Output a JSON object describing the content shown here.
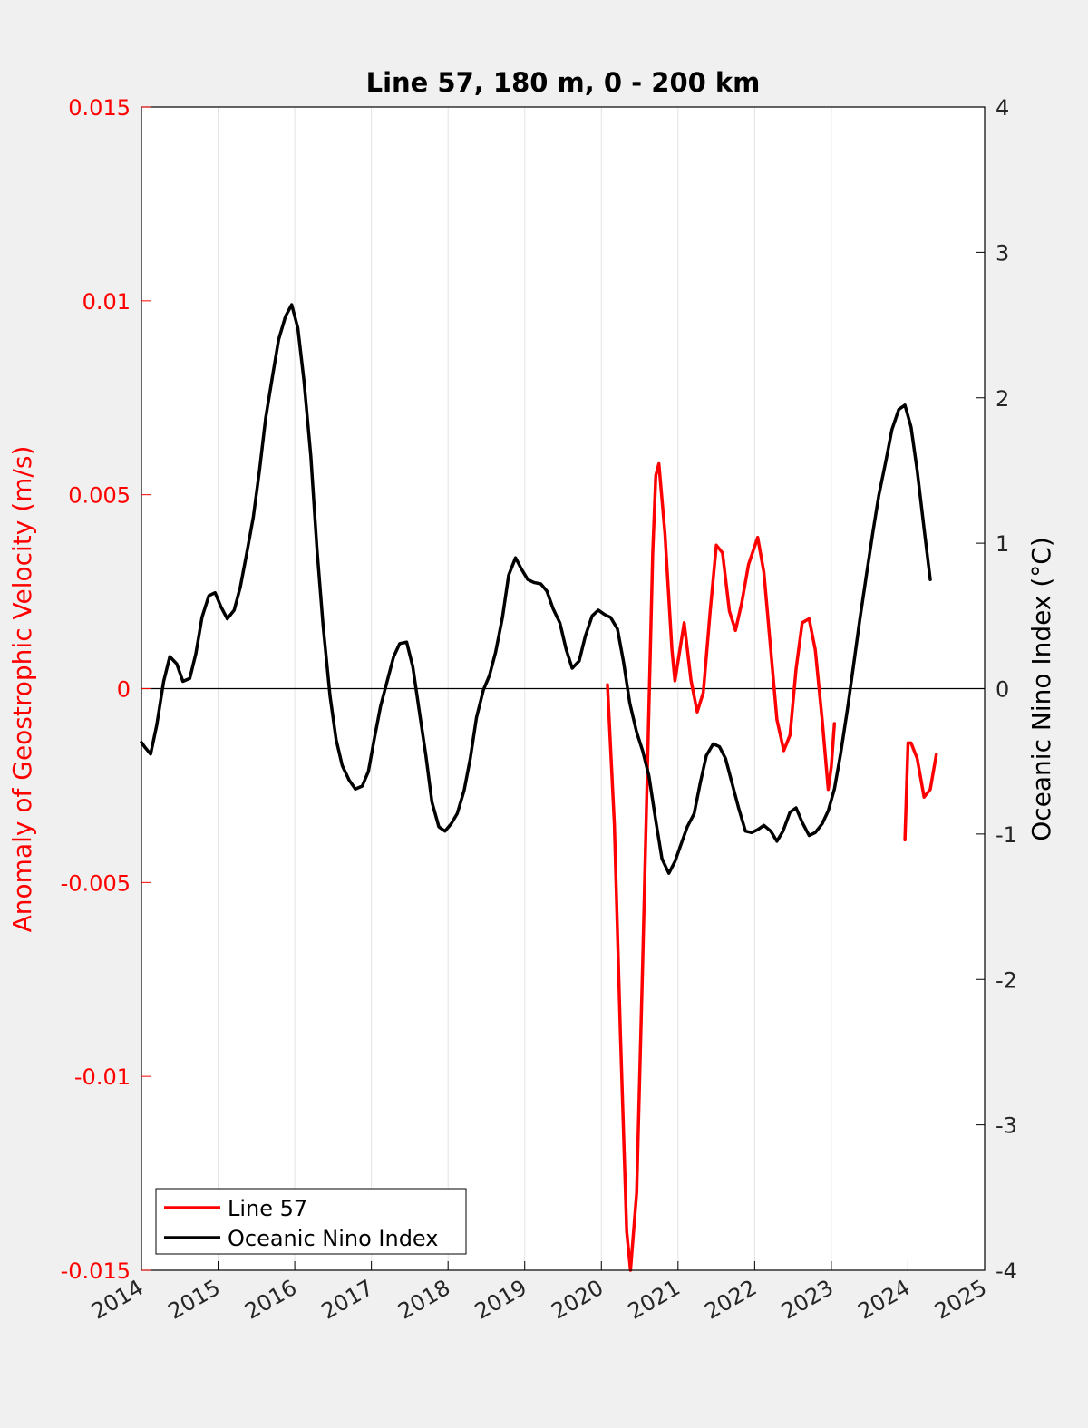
{
  "chart_data": {
    "type": "line",
    "title": "Line 57, 180 m, 0 - 200 km",
    "xlabel": "",
    "ylabel_left": "Anomaly of Geostrophic Velocity (m/s)",
    "ylabel_right": "Oceanic Nino Index (°C)",
    "xlim": [
      2014,
      2025
    ],
    "ylim_left": [
      -0.015,
      0.015
    ],
    "ylim_right": [
      -4,
      4
    ],
    "x_ticks": [
      "2014",
      "2015",
      "2016",
      "2017",
      "2018",
      "2019",
      "2020",
      "2021",
      "2022",
      "2023",
      "2024",
      "2025"
    ],
    "y_left_ticks": [
      "-0.015",
      "-0.01",
      "-0.005",
      "0",
      "0.005",
      "0.01",
      "0.015"
    ],
    "y_right_ticks": [
      "-4",
      "-3",
      "-2",
      "-1",
      "0",
      "1",
      "2",
      "3",
      "4"
    ],
    "grid": "vertical",
    "zero_line": true,
    "legend_position": "bottom-left",
    "colors": {
      "left_axis": "#ff0000",
      "line57": "#ff0000",
      "oni": "#000000",
      "background": "#f0f0f0",
      "plot_bg": "#ffffff"
    },
    "series": [
      {
        "name": "Line 57",
        "axis": "left",
        "color": "#ff0000",
        "segments": [
          [
            [
              2020.08,
              0.0001
            ],
            [
              2020.17,
              -0.0035
            ],
            [
              2020.25,
              -0.009
            ],
            [
              2020.33,
              -0.014
            ],
            [
              2020.38,
              -0.015
            ],
            [
              2020.46,
              -0.013
            ],
            [
              2020.54,
              -0.007
            ],
            [
              2020.62,
              -0.0005
            ],
            [
              2020.67,
              0.0035
            ],
            [
              2020.71,
              0.0055
            ],
            [
              2020.75,
              0.0058
            ],
            [
              2020.83,
              0.004
            ],
            [
              2020.92,
              0.001
            ],
            [
              2020.96,
              0.0002
            ],
            [
              2021.04,
              0.0012
            ],
            [
              2021.08,
              0.0017
            ],
            [
              2021.17,
              0.0002
            ],
            [
              2021.25,
              -0.0006
            ],
            [
              2021.33,
              -0.0001
            ],
            [
              2021.42,
              0.002
            ],
            [
              2021.5,
              0.0037
            ],
            [
              2021.58,
              0.0035
            ],
            [
              2021.67,
              0.002
            ],
            [
              2021.75,
              0.0015
            ],
            [
              2021.83,
              0.0022
            ],
            [
              2021.92,
              0.0032
            ],
            [
              2022.04,
              0.0039
            ],
            [
              2022.12,
              0.003
            ],
            [
              2022.21,
              0.001
            ],
            [
              2022.29,
              -0.0008
            ],
            [
              2022.38,
              -0.0016
            ],
            [
              2022.46,
              -0.0012
            ],
            [
              2022.54,
              0.0005
            ],
            [
              2022.62,
              0.0017
            ],
            [
              2022.71,
              0.0018
            ],
            [
              2022.79,
              0.001
            ],
            [
              2022.88,
              -0.0008
            ],
            [
              2022.96,
              -0.0026
            ],
            [
              2023.0,
              -0.002
            ],
            [
              2023.04,
              -0.0009
            ]
          ],
          [
            [
              2023.96,
              -0.0039
            ],
            [
              2024.0,
              -0.0014
            ],
            [
              2024.04,
              -0.0014
            ],
            [
              2024.12,
              -0.0018
            ],
            [
              2024.21,
              -0.0028
            ],
            [
              2024.29,
              -0.0026
            ],
            [
              2024.37,
              -0.0017
            ]
          ]
        ]
      },
      {
        "name": "Oceanic Nino Index",
        "axis": "right",
        "color": "#000000",
        "segments": [
          [
            [
              2014.0,
              -0.37
            ],
            [
              2014.04,
              -0.4
            ],
            [
              2014.12,
              -0.45
            ],
            [
              2014.2,
              -0.25
            ],
            [
              2014.29,
              0.05
            ],
            [
              2014.37,
              0.22
            ],
            [
              2014.46,
              0.17
            ],
            [
              2014.54,
              0.05
            ],
            [
              2014.63,
              0.07
            ],
            [
              2014.71,
              0.24
            ],
            [
              2014.79,
              0.49
            ],
            [
              2014.88,
              0.64
            ],
            [
              2014.96,
              0.66
            ],
            [
              2015.04,
              0.56
            ],
            [
              2015.12,
              0.48
            ],
            [
              2015.21,
              0.54
            ],
            [
              2015.29,
              0.7
            ],
            [
              2015.37,
              0.92
            ],
            [
              2015.46,
              1.18
            ],
            [
              2015.54,
              1.5
            ],
            [
              2015.62,
              1.86
            ],
            [
              2015.71,
              2.15
            ],
            [
              2015.79,
              2.4
            ],
            [
              2015.88,
              2.56
            ],
            [
              2015.96,
              2.64
            ],
            [
              2016.04,
              2.48
            ],
            [
              2016.12,
              2.12
            ],
            [
              2016.21,
              1.6
            ],
            [
              2016.29,
              0.96
            ],
            [
              2016.37,
              0.43
            ],
            [
              2016.46,
              -0.05
            ],
            [
              2016.54,
              -0.35
            ],
            [
              2016.62,
              -0.53
            ],
            [
              2016.71,
              -0.63
            ],
            [
              2016.79,
              -0.69
            ],
            [
              2016.88,
              -0.67
            ],
            [
              2016.96,
              -0.57
            ],
            [
              2017.04,
              -0.34
            ],
            [
              2017.12,
              -0.12
            ],
            [
              2017.21,
              0.06
            ],
            [
              2017.29,
              0.22
            ],
            [
              2017.37,
              0.31
            ],
            [
              2017.46,
              0.32
            ],
            [
              2017.54,
              0.15
            ],
            [
              2017.62,
              -0.14
            ],
            [
              2017.71,
              -0.46
            ],
            [
              2017.79,
              -0.78
            ],
            [
              2017.88,
              -0.95
            ],
            [
              2017.96,
              -0.98
            ],
            [
              2018.04,
              -0.93
            ],
            [
              2018.12,
              -0.86
            ],
            [
              2018.21,
              -0.7
            ],
            [
              2018.29,
              -0.48
            ],
            [
              2018.37,
              -0.2
            ],
            [
              2018.46,
              -0.01
            ],
            [
              2018.54,
              0.09
            ],
            [
              2018.62,
              0.25
            ],
            [
              2018.71,
              0.49
            ],
            [
              2018.79,
              0.78
            ],
            [
              2018.88,
              0.9
            ],
            [
              2018.96,
              0.82
            ],
            [
              2019.04,
              0.75
            ],
            [
              2019.12,
              0.73
            ],
            [
              2019.21,
              0.72
            ],
            [
              2019.29,
              0.67
            ],
            [
              2019.37,
              0.55
            ],
            [
              2019.46,
              0.45
            ],
            [
              2019.54,
              0.27
            ],
            [
              2019.62,
              0.14
            ],
            [
              2019.71,
              0.19
            ],
            [
              2019.79,
              0.36
            ],
            [
              2019.88,
              0.5
            ],
            [
              2019.96,
              0.54
            ],
            [
              2020.04,
              0.51
            ],
            [
              2020.12,
              0.49
            ],
            [
              2020.21,
              0.41
            ],
            [
              2020.29,
              0.18
            ],
            [
              2020.37,
              -0.1
            ],
            [
              2020.46,
              -0.3
            ],
            [
              2020.54,
              -0.43
            ],
            [
              2020.62,
              -0.6
            ],
            [
              2020.71,
              -0.91
            ],
            [
              2020.79,
              -1.17
            ],
            [
              2020.88,
              -1.27
            ],
            [
              2020.96,
              -1.19
            ],
            [
              2021.04,
              -1.07
            ],
            [
              2021.12,
              -0.95
            ],
            [
              2021.21,
              -0.86
            ],
            [
              2021.29,
              -0.65
            ],
            [
              2021.37,
              -0.46
            ],
            [
              2021.46,
              -0.38
            ],
            [
              2021.54,
              -0.4
            ],
            [
              2021.62,
              -0.48
            ],
            [
              2021.71,
              -0.66
            ],
            [
              2021.79,
              -0.82
            ],
            [
              2021.88,
              -0.98
            ],
            [
              2021.96,
              -0.99
            ],
            [
              2022.04,
              -0.97
            ],
            [
              2022.12,
              -0.94
            ],
            [
              2022.21,
              -0.98
            ],
            [
              2022.29,
              -1.05
            ],
            [
              2022.37,
              -0.98
            ],
            [
              2022.46,
              -0.85
            ],
            [
              2022.54,
              -0.82
            ],
            [
              2022.62,
              -0.92
            ],
            [
              2022.71,
              -1.01
            ],
            [
              2022.79,
              -0.99
            ],
            [
              2022.88,
              -0.93
            ],
            [
              2022.96,
              -0.84
            ],
            [
              2023.04,
              -0.69
            ],
            [
              2023.12,
              -0.45
            ],
            [
              2023.21,
              -0.14
            ],
            [
              2023.29,
              0.16
            ],
            [
              2023.37,
              0.47
            ],
            [
              2023.46,
              0.79
            ],
            [
              2023.54,
              1.07
            ],
            [
              2023.62,
              1.33
            ],
            [
              2023.71,
              1.56
            ],
            [
              2023.79,
              1.78
            ],
            [
              2023.88,
              1.92
            ],
            [
              2023.96,
              1.95
            ],
            [
              2024.04,
              1.8
            ],
            [
              2024.12,
              1.5
            ],
            [
              2024.21,
              1.1
            ],
            [
              2024.29,
              0.75
            ]
          ]
        ]
      }
    ]
  }
}
